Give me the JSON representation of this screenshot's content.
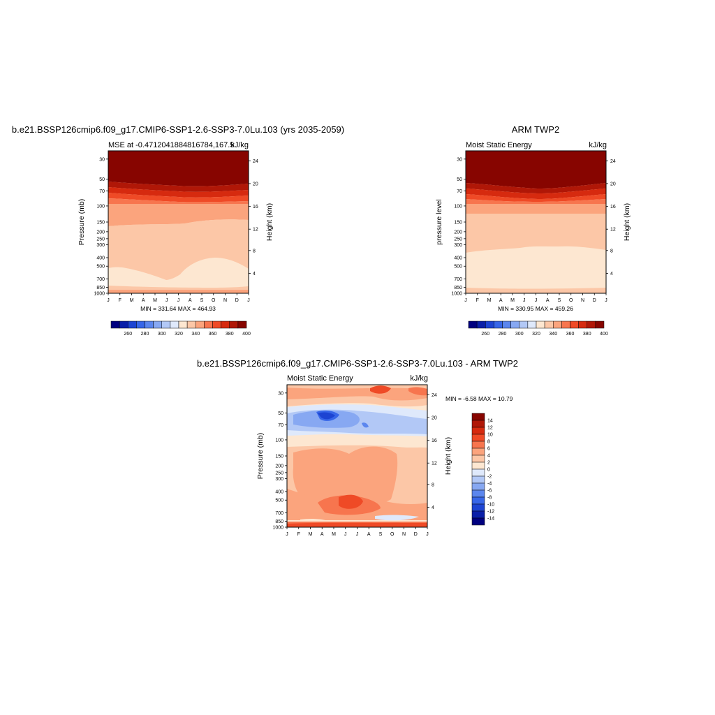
{
  "months": [
    "J",
    "F",
    "M",
    "A",
    "M",
    "J",
    "J",
    "A",
    "S",
    "O",
    "N",
    "D",
    "J"
  ],
  "pressure_ticks": [
    "30",
    "50",
    "70",
    "100",
    "150",
    "200",
    "250",
    "300",
    "400",
    "500",
    "700",
    "850",
    "1000"
  ],
  "height_ticks": [
    "4",
    "8",
    "12",
    "16",
    "20",
    "24"
  ],
  "units": "kJ/kg",
  "chart_data": [
    {
      "type": "heatmap",
      "title": "b.e21.BSSP126cmip6.f09_g17.CMIP6-SSP1-2.6-SSP3-7.0Lu.103 (yrs 2035-2059)",
      "subtitle": "MSE at -0.4712041884816784,167.5",
      "units": "kJ/kg",
      "xlabel": "",
      "ylabel": "Pressure (mb)",
      "ylabel_right": "Height (km)",
      "stats": "MIN = 331.64 MAX = 464.93",
      "min": 331.64,
      "max": 464.93,
      "colorbar": {
        "labels": [
          "260",
          "280",
          "300",
          "320",
          "340",
          "360",
          "380",
          "400"
        ],
        "colors": [
          "#00007f",
          "#0a1fa8",
          "#1d44d2",
          "#3766e8",
          "#5b86ee",
          "#87a8f2",
          "#b2c8f6",
          "#dfe9fb",
          "#fde7d1",
          "#fcc7a7",
          "#fba47d",
          "#f7754e",
          "#ef4a26",
          "#d62a0f",
          "#b01707",
          "#870500"
        ]
      }
    },
    {
      "type": "heatmap",
      "title": "ARM TWP2",
      "subtitle": "Moist Static Energy",
      "units": "kJ/kg",
      "xlabel": "",
      "ylabel": "pressure level",
      "ylabel_right": "Height (km)",
      "stats": "MIN = 330.95 MAX = 459.26",
      "min": 330.95,
      "max": 459.26,
      "colorbar": {
        "labels": [
          "260",
          "280",
          "300",
          "320",
          "340",
          "360",
          "380",
          "400"
        ],
        "colors": [
          "#00007f",
          "#0a1fa8",
          "#1d44d2",
          "#3766e8",
          "#5b86ee",
          "#87a8f2",
          "#b2c8f6",
          "#dfe9fb",
          "#fde7d1",
          "#fcc7a7",
          "#fba47d",
          "#f7754e",
          "#ef4a26",
          "#d62a0f",
          "#b01707",
          "#870500"
        ]
      }
    },
    {
      "type": "heatmap",
      "title": "b.e21.BSSP126cmip6.f09_g17.CMIP6-SSP1-2.6-SSP3-7.0Lu.103 - ARM TWP2",
      "subtitle": "Moist Static Energy",
      "units": "kJ/kg",
      "xlabel": "",
      "ylabel": "Pressure (mb)",
      "ylabel_right": "Height (km)",
      "stats": "MIN =  -6.58 MAX =  10.79",
      "min": -6.58,
      "max": 10.79,
      "colorbar": {
        "labels": [
          "14",
          "12",
          "10",
          "8",
          "6",
          "4",
          "2",
          "0",
          "-2",
          "-4",
          "-6",
          "-8",
          "-10",
          "-12",
          "-14"
        ],
        "colors": [
          "#870500",
          "#b01707",
          "#d62a0f",
          "#ef4a26",
          "#f7754e",
          "#fba47d",
          "#fcc7a7",
          "#fde7d1",
          "#dfe9fb",
          "#b2c8f6",
          "#87a8f2",
          "#5b86ee",
          "#3766e8",
          "#1d44d2",
          "#0a1fa8",
          "#00007f"
        ]
      }
    }
  ]
}
